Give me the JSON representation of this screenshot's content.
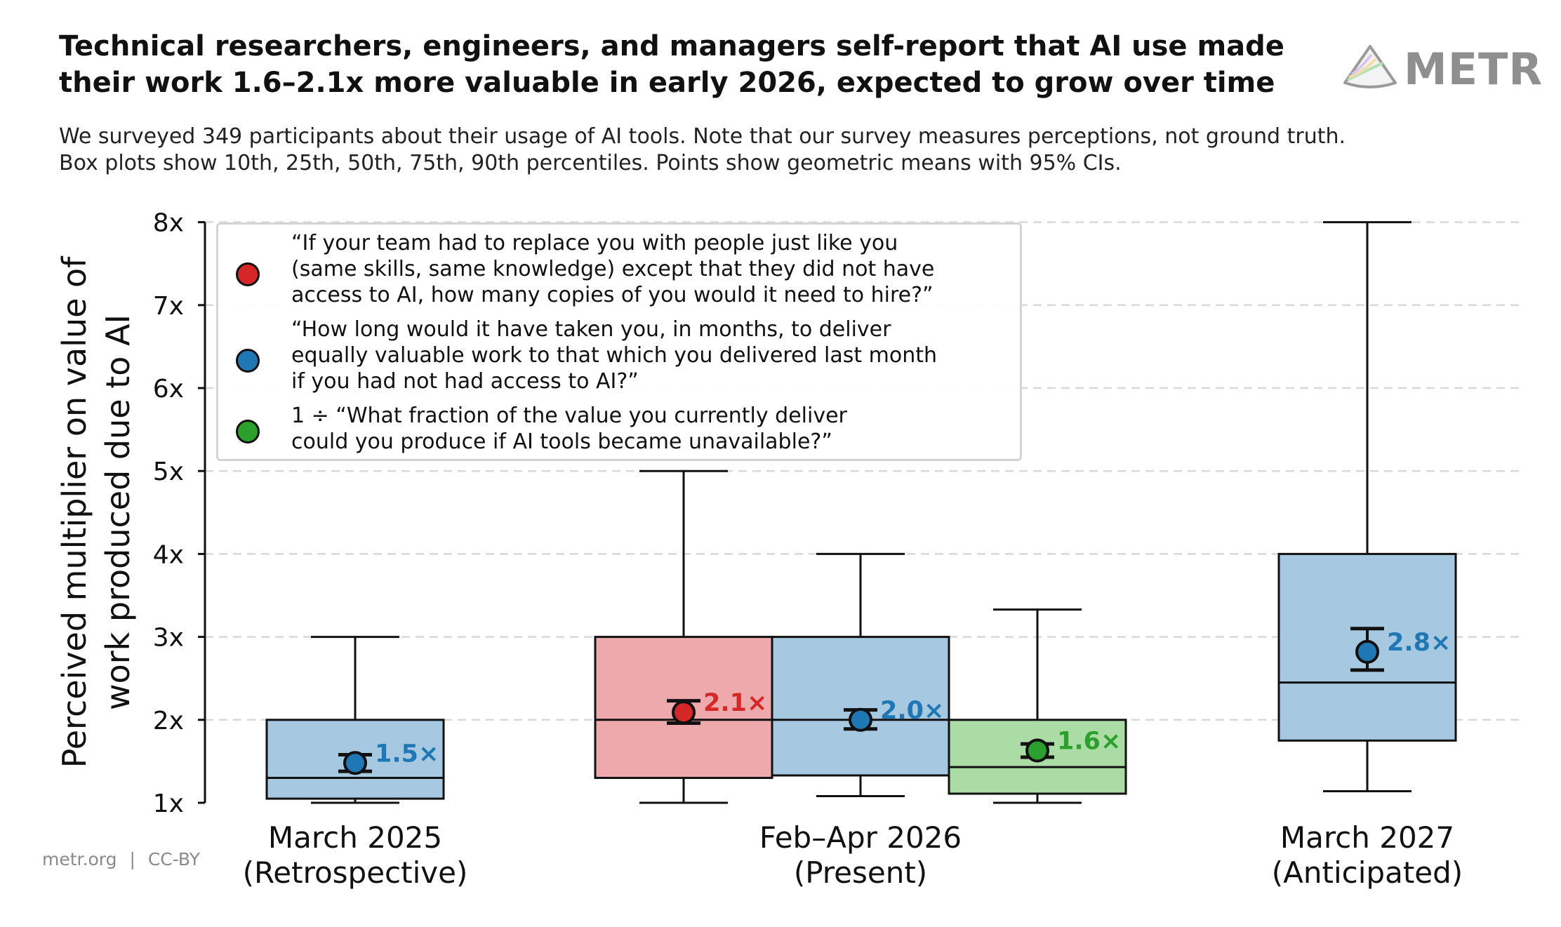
{
  "title": {
    "line1": "Technical researchers, engineers, and managers self-report that AI use made",
    "line2": "their work 1.6–2.1x more valuable in early 2026, expected to grow over time"
  },
  "subtitle": {
    "line1": "We surveyed 349 participants about their usage of AI tools. Note that our survey measures perceptions, not ground truth.",
    "line2": "Box plots show 10th, 25th, 50th, 75th, 90th percentiles. Points show geometric means with 95% CIs."
  },
  "logo": {
    "text": "METR",
    "icon": "metr-logo-icon"
  },
  "footer": {
    "site": "metr.org",
    "separator": "|",
    "license": "CC-BY"
  },
  "colors": {
    "red": "#d62728",
    "red_fill": "#eda9ab",
    "blue": "#1f77b4",
    "blue_fill": "#a6c8e1",
    "green": "#2ca02c",
    "green_fill": "#acdca6",
    "grid": "#d9d9d9"
  },
  "legend": {
    "placement": "top-left",
    "items": [
      {
        "color_key": "red",
        "lines": [
          "“If your team had to replace you with people just like you",
          "(same skills, same knowledge) except that they did not have",
          "access to AI, how many copies of you would it need to hire?”"
        ]
      },
      {
        "color_key": "blue",
        "lines": [
          "“How long would it have taken you, in months, to deliver",
          "equally valuable work to that which you delivered last month",
          "if you had not had access to AI?”"
        ]
      },
      {
        "color_key": "green",
        "lines": [
          "1 ÷ “What fraction of the value you currently deliver",
          "could you produce if AI tools became unavailable?”"
        ]
      }
    ]
  },
  "chart_data": {
    "type": "box",
    "ylabel_lines": [
      "Perceived multiplier on value of",
      "work produced due to AI"
    ],
    "ylim": [
      1,
      8
    ],
    "yticks": [
      1,
      2,
      3,
      4,
      5,
      6,
      7,
      8
    ],
    "ytick_labels": [
      "1x",
      "2x",
      "3x",
      "4x",
      "5x",
      "6x",
      "7x",
      "8x"
    ],
    "grid": "horizontal dashed",
    "groups": [
      {
        "lines": [
          "March 2025",
          "(Retrospective)"
        ]
      },
      {
        "lines": [
          "Feb–Apr 2026",
          "(Present)"
        ]
      },
      {
        "lines": [
          "March 2027",
          "(Anticipated)"
        ]
      }
    ],
    "boxes": [
      {
        "group": 0,
        "series": "blue",
        "p10": 1.0,
        "p25": 1.05,
        "p50": 1.3,
        "p75": 2.0,
        "p90": 3.0,
        "mean": 1.48,
        "ci": [
          1.38,
          1.58
        ],
        "label": "1.5×"
      },
      {
        "group": 1,
        "series": "red",
        "p10": 1.0,
        "p25": 1.3,
        "p50": 2.0,
        "p75": 3.0,
        "p90": 5.0,
        "mean": 2.09,
        "ci": [
          1.96,
          2.23
        ],
        "label": "2.1×"
      },
      {
        "group": 1,
        "series": "blue",
        "p10": 1.08,
        "p25": 1.33,
        "p50": 2.0,
        "p75": 3.0,
        "p90": 4.0,
        "mean": 2.0,
        "ci": [
          1.89,
          2.12
        ],
        "label": "2.0×"
      },
      {
        "group": 1,
        "series": "green",
        "p10": 1.0,
        "p25": 1.11,
        "p50": 1.43,
        "p75": 2.0,
        "p90": 3.33,
        "mean": 1.63,
        "ci": [
          1.55,
          1.71
        ],
        "label": "1.6×"
      },
      {
        "group": 2,
        "series": "blue",
        "p10": 1.14,
        "p25": 1.75,
        "p50": 2.45,
        "p75": 4.0,
        "p90": 8.0,
        "mean": 2.82,
        "ci": [
          2.6,
          3.1
        ],
        "label": "2.8×"
      }
    ]
  }
}
